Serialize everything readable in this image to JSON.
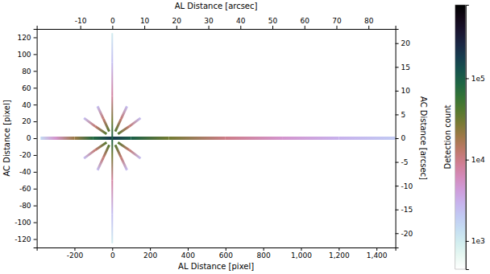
{
  "chart_data": {
    "type": "heatmap",
    "xlabel": "AL Distance [pixel]",
    "ylabel": "AC Distance [pixel]",
    "x2label": "AL Distance [arcsec]",
    "y2label": "AC Distance [arcsec]",
    "xlim": [
      -400,
      1500
    ],
    "xticks": [
      -200,
      0,
      200,
      400,
      600,
      800,
      {
        "value": 1000,
        "label": "1,000"
      },
      {
        "value": 1200,
        "label": "1,200"
      },
      {
        "value": 1400,
        "label": "1,400"
      }
    ],
    "ylim": [
      -130,
      130
    ],
    "yticks": [
      -120,
      -100,
      -80,
      -60,
      -40,
      -20,
      0,
      20,
      40,
      60,
      80,
      100,
      120
    ],
    "x2lim": [
      -23.6,
      88.4
    ],
    "x2ticks": [
      -10,
      0,
      10,
      20,
      30,
      40,
      50,
      60,
      70,
      80
    ],
    "y2lim": [
      -23,
      23
    ],
    "y2ticks": [
      -20,
      -15,
      -10,
      -5,
      0,
      5,
      10,
      15,
      20
    ],
    "colorbar": {
      "label": "Detection count",
      "log": true,
      "lim": [
        450,
        800000
      ],
      "ticks": [
        {
          "value": 1000,
          "label": "1e3"
        },
        {
          "value": 10000,
          "label": "1e4"
        },
        {
          "value": 100000,
          "label": "1e5"
        }
      ]
    },
    "streaks": [
      {
        "x": [
          0,
          100,
          300,
          600,
          900,
          1200,
          1500
        ],
        "y": [
          0,
          0,
          0,
          0,
          0,
          0,
          0
        ],
        "counts": [
          200000,
          100000,
          30000,
          10000,
          5000,
          3000,
          2000
        ]
      },
      {
        "x": [
          0,
          -100,
          -200,
          -300,
          -380
        ],
        "y": [
          0,
          0,
          0,
          0,
          0
        ],
        "counts": [
          200000,
          80000,
          20000,
          5000,
          1500
        ]
      },
      {
        "x": [
          0,
          0,
          0,
          0,
          0
        ],
        "y": [
          0,
          20,
          50,
          90,
          125
        ],
        "counts": [
          100000,
          30000,
          8000,
          2500,
          1000
        ]
      },
      {
        "x": [
          0,
          0,
          0,
          0,
          0
        ],
        "y": [
          0,
          -20,
          -50,
          -90,
          -125
        ],
        "counts": [
          100000,
          30000,
          8000,
          2500,
          1000
        ]
      },
      {
        "x": [
          30,
          90,
          150
        ],
        "y": [
          5,
          14,
          24
        ],
        "counts": [
          40000,
          12000,
          2500
        ]
      },
      {
        "x": [
          -30,
          -90,
          -150
        ],
        "y": [
          5,
          14,
          24
        ],
        "counts": [
          40000,
          12000,
          2500
        ]
      },
      {
        "x": [
          30,
          90,
          150
        ],
        "y": [
          -5,
          -14,
          -24
        ],
        "counts": [
          40000,
          12000,
          2500
        ]
      },
      {
        "x": [
          -30,
          -90,
          -150
        ],
        "y": [
          -5,
          -14,
          -24
        ],
        "counts": [
          40000,
          12000,
          2500
        ]
      },
      {
        "x": [
          16,
          47,
          78
        ],
        "y": [
          8,
          23,
          38
        ],
        "counts": [
          40000,
          12000,
          2500
        ]
      },
      {
        "x": [
          -16,
          -47,
          -78
        ],
        "y": [
          8,
          23,
          38
        ],
        "counts": [
          40000,
          12000,
          2500
        ]
      },
      {
        "x": [
          16,
          47,
          78
        ],
        "y": [
          -8,
          -23,
          -38
        ],
        "counts": [
          40000,
          12000,
          2500
        ]
      },
      {
        "x": [
          -16,
          -47,
          -78
        ],
        "y": [
          -8,
          -23,
          -38
        ],
        "counts": [
          40000,
          12000,
          2500
        ]
      }
    ]
  }
}
